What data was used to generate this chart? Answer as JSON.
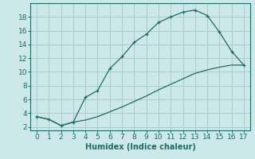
{
  "title": "",
  "xlabel": "Humidex (Indice chaleur)",
  "bg_color": "#cce8e8",
  "grid_color": "#aacccc",
  "line_color": "#1a6e64",
  "upper_x": [
    0,
    1,
    2,
    3,
    4,
    5,
    6,
    7,
    8,
    9,
    10,
    11,
    12,
    13,
    14,
    15,
    16,
    17
  ],
  "upper_y": [
    3.5,
    3.1,
    2.2,
    2.7,
    6.3,
    7.3,
    10.5,
    12.2,
    14.3,
    15.5,
    17.2,
    18.0,
    18.7,
    19.0,
    18.2,
    15.8,
    13.0,
    11.0
  ],
  "lower_x": [
    0,
    1,
    2,
    3,
    4,
    5,
    6,
    7,
    8,
    9,
    10,
    11,
    12,
    13,
    14,
    15,
    16,
    17
  ],
  "lower_y": [
    3.5,
    3.1,
    2.2,
    2.7,
    3.0,
    3.5,
    4.2,
    4.9,
    5.7,
    6.5,
    7.4,
    8.2,
    9.0,
    9.8,
    10.3,
    10.7,
    11.0,
    11.0
  ],
  "xlim": [
    -0.5,
    17.5
  ],
  "ylim": [
    1.5,
    20
  ],
  "xticks": [
    0,
    1,
    2,
    3,
    4,
    5,
    6,
    7,
    8,
    9,
    10,
    11,
    12,
    13,
    14,
    15,
    16,
    17
  ],
  "yticks": [
    2,
    4,
    6,
    8,
    10,
    12,
    14,
    16,
    18
  ],
  "axis_fontsize": 7,
  "tick_fontsize": 6.5
}
